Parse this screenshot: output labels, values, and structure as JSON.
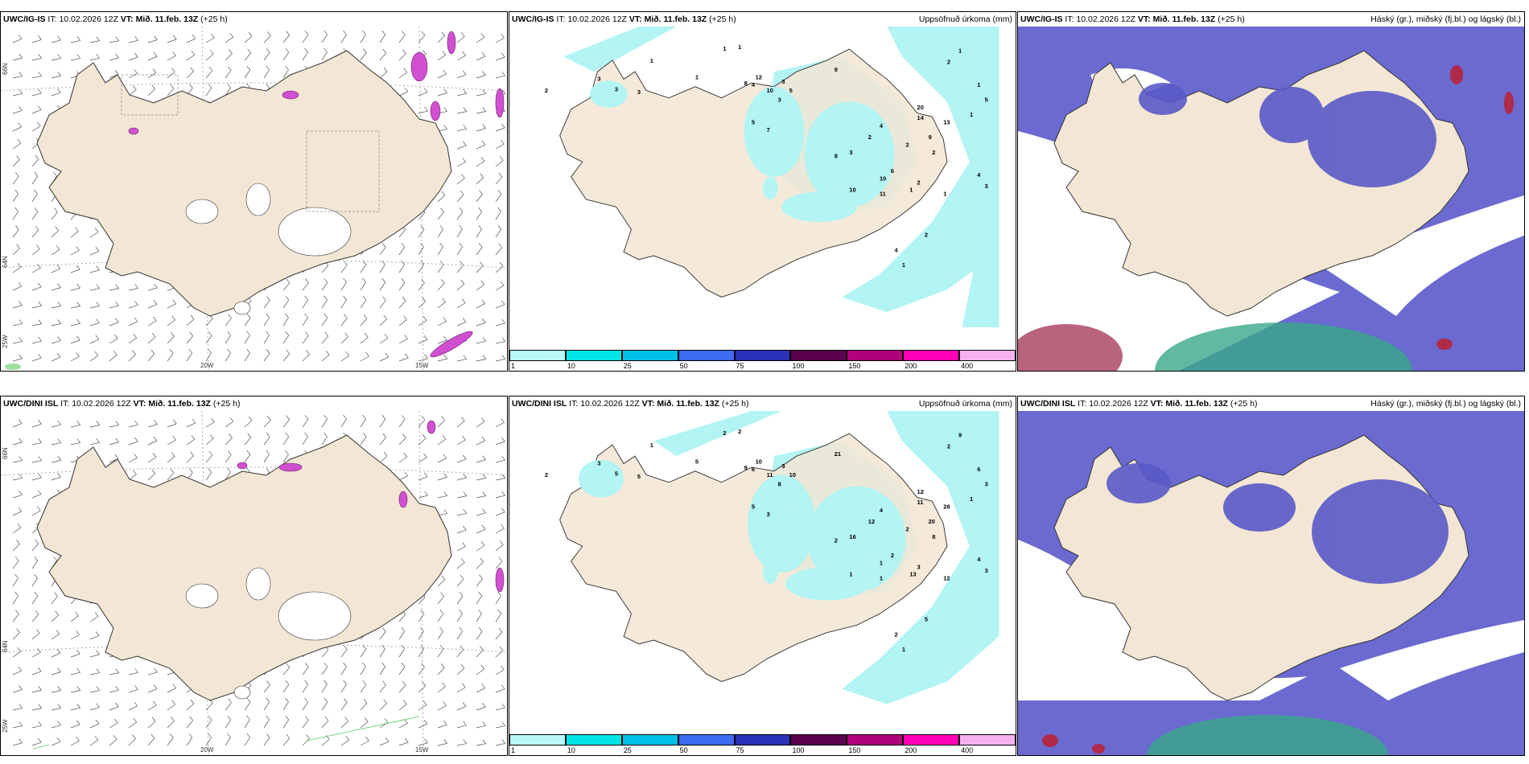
{
  "rows": [
    {
      "model_bold": "UWC/IG-IS",
      "it_label": "IT:",
      "it_value": "10.02.2026 12Z",
      "vt_label": "VT:",
      "vt_value": "Mið. 11.feb. 13Z",
      "lead": "(+25 h)",
      "axis": {
        "lon1": "20W",
        "lon2": "15W",
        "lat_top": "66N",
        "lat_mid": "64N",
        "lat_left": "25W"
      },
      "precip_numbers": [
        "1",
        "1",
        "1",
        "2",
        "3",
        "1",
        "3",
        "3",
        "8",
        "10",
        "4",
        "3",
        "5",
        "3",
        "12",
        "9",
        "20",
        "14",
        "13",
        "9",
        "4",
        "2",
        "2",
        "1",
        "1",
        "2",
        "3",
        "5",
        "7",
        "8",
        "6",
        "10",
        "10",
        "11",
        "2",
        "2",
        "4",
        "3",
        "1",
        "1",
        "4",
        "2",
        "1",
        "1",
        "5"
      ]
    },
    {
      "model_bold": "UWC/DINI ISL",
      "it_label": "IT:",
      "it_value": "10.02.2026 12Z",
      "vt_label": "VT:",
      "vt_value": "Mið. 11.feb. 13Z",
      "lead": "(+25 h)",
      "axis": {
        "lon1": "20W",
        "lon2": "15W",
        "lat_top": "66N",
        "lat_mid": "64N",
        "lat_left": "25W"
      },
      "precip_numbers": [
        "2",
        "2",
        "1",
        "2",
        "3",
        "5",
        "5",
        "5",
        "9",
        "11",
        "6",
        "3",
        "10",
        "8",
        "10",
        "21",
        "12",
        "11",
        "28",
        "20",
        "4",
        "8",
        "3",
        "12",
        "13",
        "12",
        "16",
        "5",
        "3",
        "2",
        "2",
        "1",
        "1",
        "1",
        "2",
        "2",
        "4",
        "3",
        "1",
        "1",
        "2",
        "5",
        "9",
        "6",
        "3"
      ]
    }
  ],
  "middle_title": "Uppsöfnuð úrkoma (mm)",
  "right_title": "Háský (gr.), miðský (fj.bl.) og lágský (bl.)",
  "colorbar": {
    "ticks": [
      "1",
      "10",
      "25",
      "50",
      "75",
      "100",
      "150",
      "200",
      "400"
    ],
    "colors": [
      "#b8f7f7",
      "#00e6e6",
      "#00bfe6",
      "#3d6cf0",
      "#2a2fb8",
      "#5a004d",
      "#b0007a",
      "#ff00b8",
      "#f5b0ee"
    ]
  },
  "colors": {
    "land": "#f3e6d4",
    "sea_precip": "#b3f4f4",
    "high_cloud": "#6a6ad0",
    "mid_cloud": "#2f8fe6",
    "low_cloud": "#3aa88a",
    "pink": "#d050d0"
  }
}
